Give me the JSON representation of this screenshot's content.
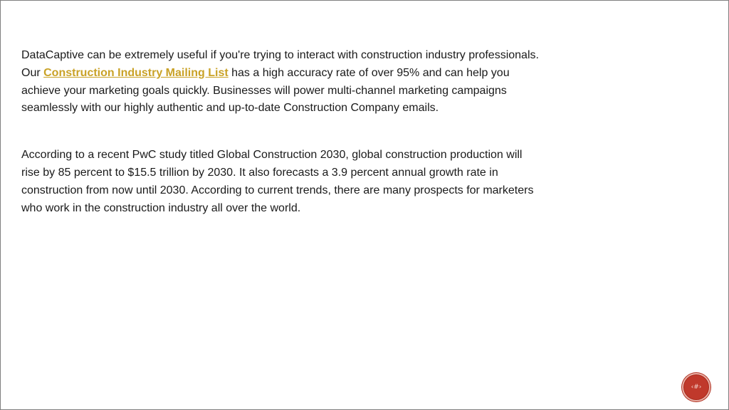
{
  "paragraph1": {
    "before_link": "DataCaptive can be extremely useful if you're trying to interact with construction industry professionals. Our ",
    "link_text": "Construction Industry Mailing List",
    "after_link": " has a high accuracy rate of over 95% and can help you achieve your marketing goals quickly. Businesses will power multi-channel marketing campaigns seamlessly with our highly authentic and up-to-date Construction Company emails."
  },
  "paragraph2": {
    "text": "According to a recent PwC study titled Global Construction 2030, global construction production will rise by 85 percent to $15.5 trillion by 2030. It also forecasts a 3.9 percent annual growth rate in construction from now until 2030. According to current trends, there are many prospects for marketers who work in the construction industry all over the world."
  },
  "page_number": "‹#›",
  "colors": {
    "link": "#c9a227",
    "badge": "#c0392b",
    "text": "#1a1a1a"
  }
}
